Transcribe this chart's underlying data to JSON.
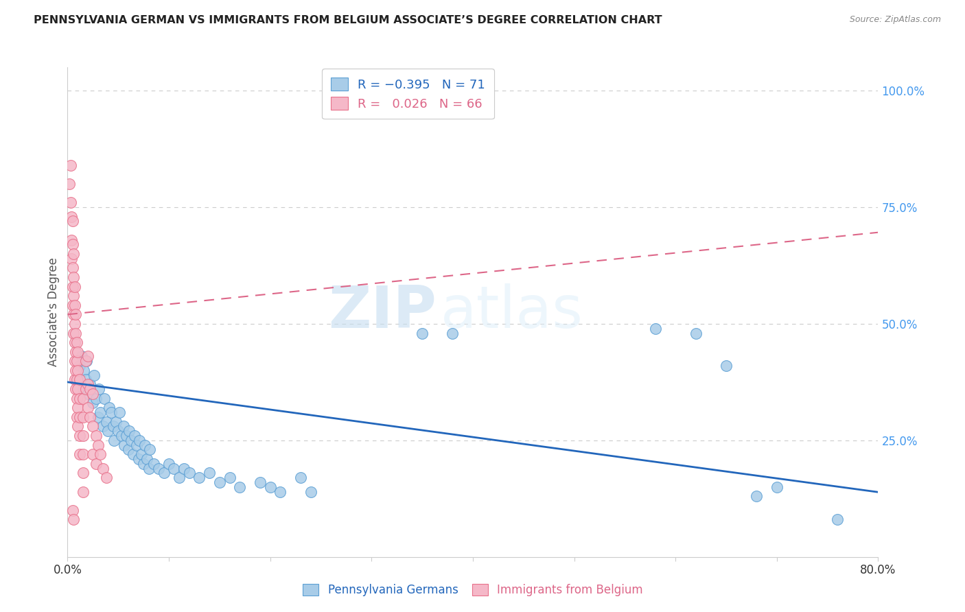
{
  "title": "PENNSYLVANIA GERMAN VS IMMIGRANTS FROM BELGIUM ASSOCIATE’S DEGREE CORRELATION CHART",
  "source": "Source: ZipAtlas.com",
  "ylabel": "Associate's Degree",
  "legend_label_blue": "Pennsylvania Germans",
  "legend_label_pink": "Immigrants from Belgium",
  "watermark_zip": "ZIP",
  "watermark_atlas": "atlas",
  "blue_color": "#a8cce8",
  "pink_color": "#f5b8c8",
  "blue_edge_color": "#5b9fd4",
  "pink_edge_color": "#e8708a",
  "blue_line_color": "#2266bb",
  "pink_line_color": "#dd6688",
  "background_color": "#ffffff",
  "grid_color": "#cccccc",
  "right_tick_color": "#4499ee",
  "blue_scatter": [
    [
      1.0,
      38
    ],
    [
      1.2,
      41
    ],
    [
      1.4,
      43
    ],
    [
      1.5,
      36
    ],
    [
      1.6,
      40
    ],
    [
      1.8,
      38
    ],
    [
      2.0,
      35
    ],
    [
      1.9,
      42
    ],
    [
      2.2,
      37
    ],
    [
      2.5,
      33
    ],
    [
      2.6,
      39
    ],
    [
      2.8,
      34
    ],
    [
      3.0,
      30
    ],
    [
      3.1,
      36
    ],
    [
      3.2,
      31
    ],
    [
      3.5,
      28
    ],
    [
      3.6,
      34
    ],
    [
      3.8,
      29
    ],
    [
      4.0,
      27
    ],
    [
      4.1,
      32
    ],
    [
      4.3,
      31
    ],
    [
      4.5,
      28
    ],
    [
      4.6,
      25
    ],
    [
      4.8,
      29
    ],
    [
      5.0,
      27
    ],
    [
      5.1,
      31
    ],
    [
      5.3,
      26
    ],
    [
      5.5,
      28
    ],
    [
      5.6,
      24
    ],
    [
      5.8,
      26
    ],
    [
      6.0,
      23
    ],
    [
      6.1,
      27
    ],
    [
      6.3,
      25
    ],
    [
      6.5,
      22
    ],
    [
      6.6,
      26
    ],
    [
      6.8,
      24
    ],
    [
      7.0,
      21
    ],
    [
      7.1,
      25
    ],
    [
      7.3,
      22
    ],
    [
      7.5,
      20
    ],
    [
      7.6,
      24
    ],
    [
      7.8,
      21
    ],
    [
      8.0,
      19
    ],
    [
      8.1,
      23
    ],
    [
      8.5,
      20
    ],
    [
      9.0,
      19
    ],
    [
      9.5,
      18
    ],
    [
      10.0,
      20
    ],
    [
      10.5,
      19
    ],
    [
      11.0,
      17
    ],
    [
      11.5,
      19
    ],
    [
      12.0,
      18
    ],
    [
      13.0,
      17
    ],
    [
      14.0,
      18
    ],
    [
      15.0,
      16
    ],
    [
      16.0,
      17
    ],
    [
      17.0,
      15
    ],
    [
      19.0,
      16
    ],
    [
      20.0,
      15
    ],
    [
      21.0,
      14
    ],
    [
      23.0,
      17
    ],
    [
      24.0,
      14
    ],
    [
      35.0,
      48
    ],
    [
      38.0,
      48
    ],
    [
      58.0,
      49
    ],
    [
      62.0,
      48
    ],
    [
      65.0,
      41
    ],
    [
      68.0,
      13
    ],
    [
      70.0,
      15
    ],
    [
      76.0,
      8
    ]
  ],
  "pink_scatter": [
    [
      0.2,
      80
    ],
    [
      0.3,
      84
    ],
    [
      0.3,
      76
    ],
    [
      0.4,
      73
    ],
    [
      0.4,
      68
    ],
    [
      0.4,
      64
    ],
    [
      0.5,
      72
    ],
    [
      0.5,
      67
    ],
    [
      0.5,
      62
    ],
    [
      0.5,
      58
    ],
    [
      0.5,
      54
    ],
    [
      0.6,
      65
    ],
    [
      0.6,
      60
    ],
    [
      0.6,
      56
    ],
    [
      0.6,
      52
    ],
    [
      0.6,
      48
    ],
    [
      0.7,
      58
    ],
    [
      0.7,
      54
    ],
    [
      0.7,
      50
    ],
    [
      0.7,
      46
    ],
    [
      0.7,
      42
    ],
    [
      0.7,
      38
    ],
    [
      0.8,
      52
    ],
    [
      0.8,
      48
    ],
    [
      0.8,
      44
    ],
    [
      0.8,
      40
    ],
    [
      0.8,
      36
    ],
    [
      0.9,
      46
    ],
    [
      0.9,
      42
    ],
    [
      0.9,
      38
    ],
    [
      0.9,
      34
    ],
    [
      0.9,
      30
    ],
    [
      1.0,
      44
    ],
    [
      1.0,
      40
    ],
    [
      1.0,
      36
    ],
    [
      1.0,
      32
    ],
    [
      1.0,
      28
    ],
    [
      1.2,
      38
    ],
    [
      1.2,
      34
    ],
    [
      1.2,
      30
    ],
    [
      1.2,
      26
    ],
    [
      1.2,
      22
    ],
    [
      1.5,
      34
    ],
    [
      1.5,
      30
    ],
    [
      1.5,
      26
    ],
    [
      1.5,
      22
    ],
    [
      1.5,
      18
    ],
    [
      1.5,
      14
    ],
    [
      1.8,
      42
    ],
    [
      1.8,
      36
    ],
    [
      2.0,
      43
    ],
    [
      2.0,
      37
    ],
    [
      2.0,
      32
    ],
    [
      2.2,
      36
    ],
    [
      2.2,
      30
    ],
    [
      2.5,
      35
    ],
    [
      2.5,
      28
    ],
    [
      2.5,
      22
    ],
    [
      2.8,
      26
    ],
    [
      2.8,
      20
    ],
    [
      3.0,
      24
    ],
    [
      3.2,
      22
    ],
    [
      3.5,
      19
    ],
    [
      3.8,
      17
    ],
    [
      0.5,
      10
    ],
    [
      0.6,
      8
    ]
  ],
  "xlim_min": 0,
  "xlim_max": 80,
  "ylim_min": 0,
  "ylim_max": 105,
  "blue_intercept": 37.5,
  "blue_slope": -0.295,
  "pink_intercept": 52.0,
  "pink_slope": 0.22,
  "xtick_positions": [
    0,
    10,
    20,
    30,
    40,
    50,
    60,
    70,
    80
  ],
  "ytick_positions": [
    25,
    50,
    75,
    100
  ]
}
